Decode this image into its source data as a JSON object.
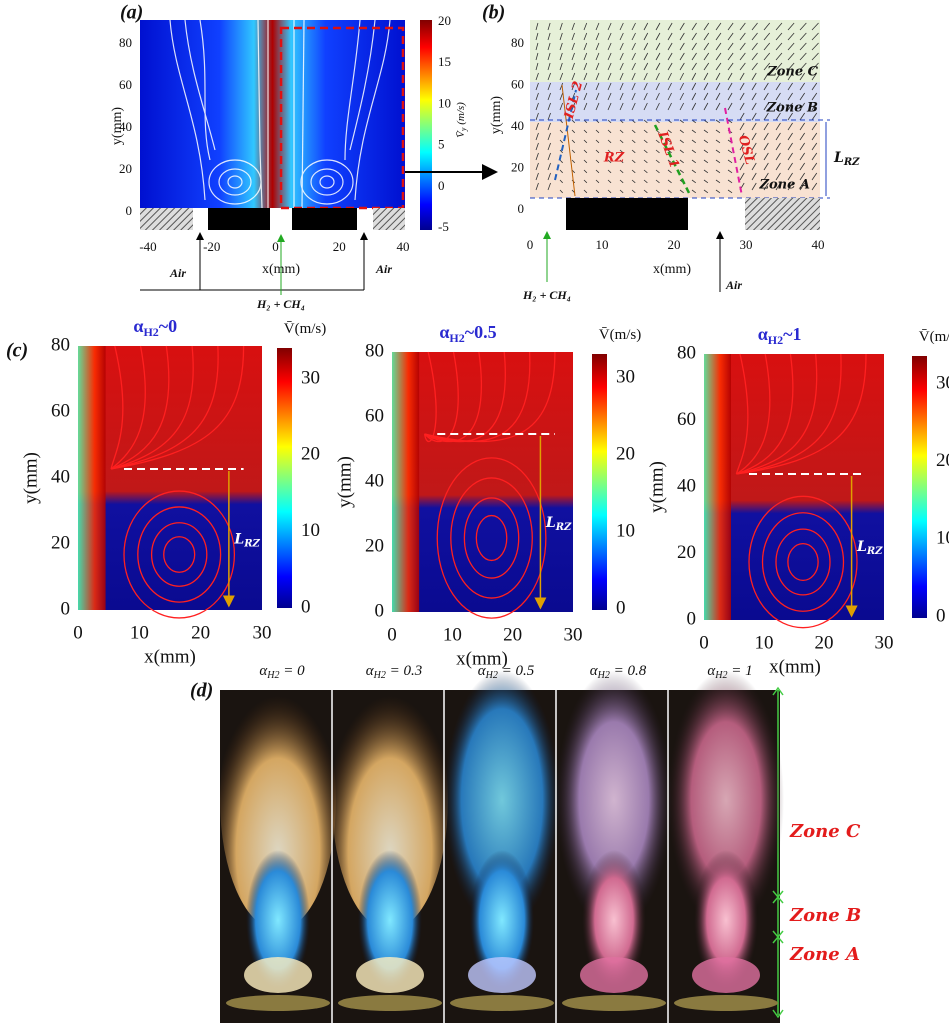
{
  "panel_a": {
    "label": "(a)",
    "x_label": "x(mm)",
    "y_label": "y(mm)",
    "xticks": [
      -40,
      -20,
      0,
      20,
      40
    ],
    "yticks": [
      0,
      20,
      40,
      60,
      80
    ],
    "colorbar": {
      "label_base": "V̄",
      "label_sub": "y",
      "label_rest": " (m/s)",
      "ticks": [
        20,
        15,
        10,
        5,
        0,
        -5
      ]
    },
    "inlet_left": "Air",
    "inlet_right": "Air",
    "fuel": "H₂ + CH₄"
  },
  "panel_b": {
    "label": "(b)",
    "x_label": "x(mm)",
    "y_label": "y(mm)",
    "xticks": [
      0,
      10,
      20,
      30,
      40
    ],
    "yticks": [
      0,
      20,
      40,
      60,
      80
    ],
    "zones": [
      "Zone C",
      "Zone B",
      "Zone A"
    ],
    "regions": {
      "isl2": "ISL 2",
      "isl1": "ISL 1",
      "rz": "RZ",
      "osl": "OSL"
    },
    "length_base": "L",
    "length_sub": "RZ",
    "fuel": "H₂ + CH₄",
    "inlet": "Air"
  },
  "panel_c": {
    "label": "(c)",
    "x_label": "x(mm)",
    "y_label": "y(mm)",
    "xticks": [
      0,
      10,
      20,
      30
    ],
    "yticks": [
      0,
      20,
      40,
      60,
      80
    ],
    "colorbar_ticks": [
      0,
      10,
      20,
      30
    ],
    "colorbar_label_base": "V̄",
    "colorbar_label_rest": "(m/s)",
    "alpha_base": "α",
    "alpha_sub": "H2",
    "titles": [
      "~0",
      "~0.5",
      "~1"
    ],
    "length_base": "L",
    "length_sub": "RZ"
  },
  "panel_d": {
    "label": "(d)",
    "alpha_base": "α",
    "alpha_sub": "H2",
    "cases": [
      " = 0",
      " = 0.3",
      " = 0.5",
      " = 0.8",
      " = 1"
    ],
    "zones": [
      "Zone C",
      "Zone B",
      "Zone A"
    ]
  }
}
